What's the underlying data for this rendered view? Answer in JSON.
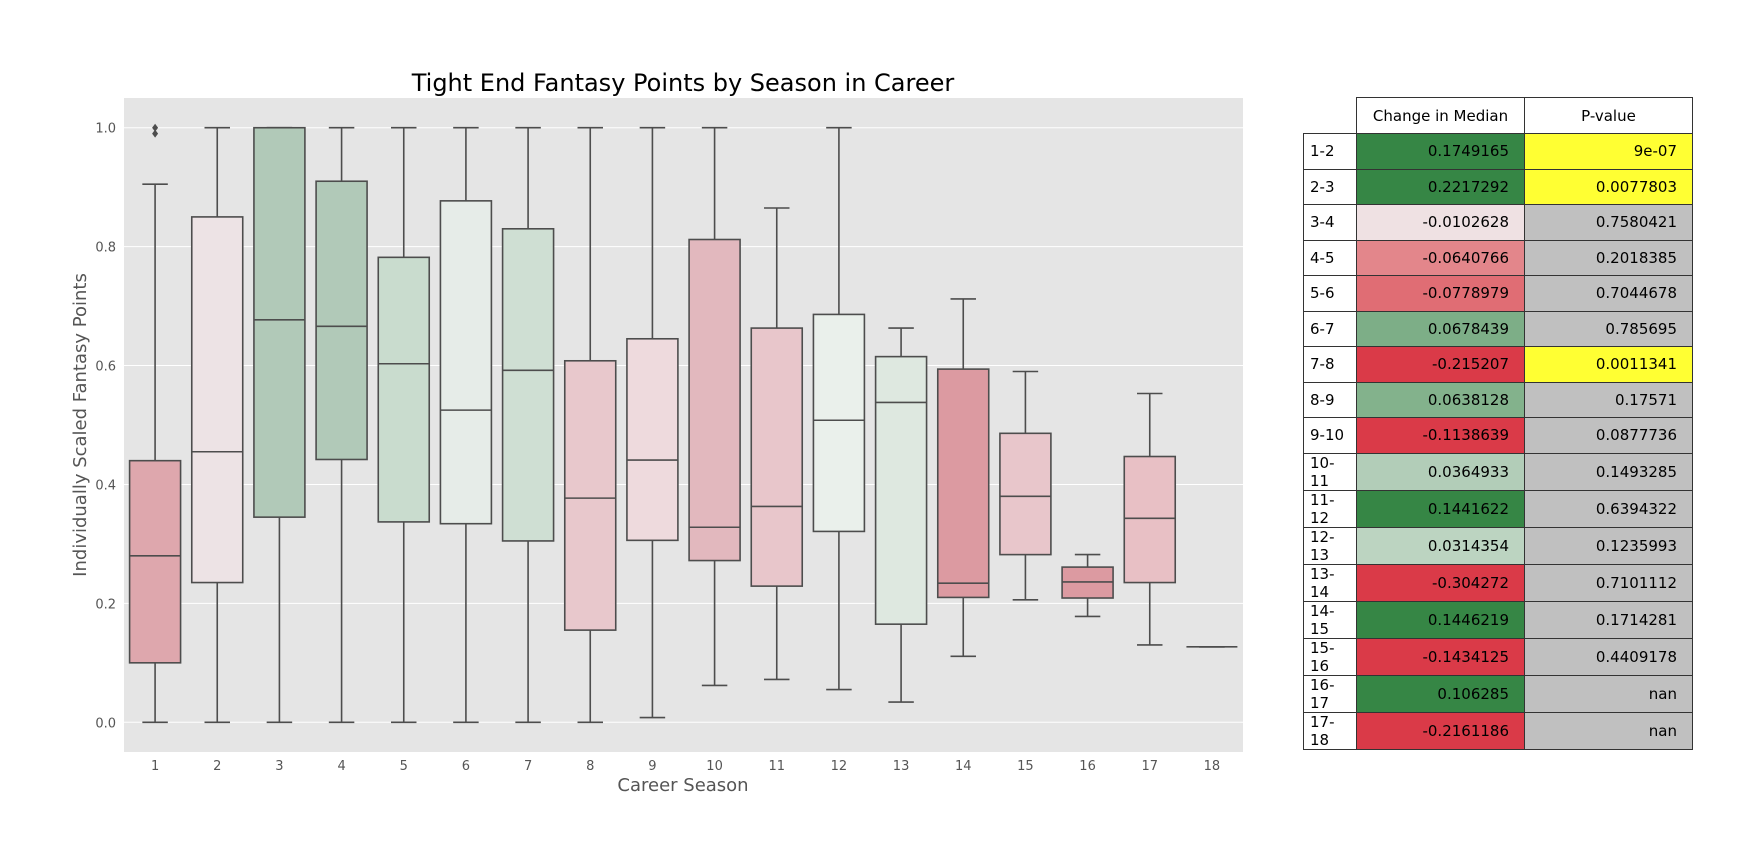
{
  "chart_data": [
    {
      "type": "box",
      "title": "Tight End Fantasy Points by Season in Career",
      "xlabel": "Career Season",
      "ylabel": "Individually Scaled Fantasy Points",
      "ylim": [
        -0.05,
        1.05
      ],
      "yticks": [
        "0.0",
        "0.2",
        "0.4",
        "0.6",
        "0.8",
        "1.0"
      ],
      "grid": true,
      "categories": [
        "1",
        "2",
        "3",
        "4",
        "5",
        "6",
        "7",
        "8",
        "9",
        "10",
        "11",
        "12",
        "13",
        "14",
        "15",
        "16",
        "17",
        "18"
      ],
      "boxes": [
        {
          "whisker_low": 0.0,
          "q1": 0.1,
          "median": 0.28,
          "q3": 0.44,
          "whisker_high": 0.905,
          "fliers": [
            0.99,
            1.0
          ],
          "color": "#dea7ad"
        },
        {
          "whisker_low": 0.0,
          "q1": 0.235,
          "median": 0.455,
          "q3": 0.85,
          "whisker_high": 1.0,
          "fliers": [],
          "color": "#ede3e5"
        },
        {
          "whisker_low": 0.0,
          "q1": 0.345,
          "median": 0.677,
          "q3": 1.0,
          "whisker_high": 1.0,
          "fliers": [],
          "color": "#b1c9b8"
        },
        {
          "whisker_low": 0.0,
          "q1": 0.442,
          "median": 0.666,
          "q3": 0.91,
          "whisker_high": 1.0,
          "fliers": [],
          "color": "#b1c9b8"
        },
        {
          "whisker_low": 0.0,
          "q1": 0.337,
          "median": 0.603,
          "q3": 0.782,
          "whisker_high": 1.0,
          "fliers": [],
          "color": "#c9dcce"
        },
        {
          "whisker_low": 0.0,
          "q1": 0.334,
          "median": 0.525,
          "q3": 0.877,
          "whisker_high": 1.0,
          "fliers": [],
          "color": "#e6ece8"
        },
        {
          "whisker_low": 0.0,
          "q1": 0.305,
          "median": 0.592,
          "q3": 0.83,
          "whisker_high": 1.0,
          "fliers": [],
          "color": "#cfdfd3"
        },
        {
          "whisker_low": 0.0,
          "q1": 0.155,
          "median": 0.377,
          "q3": 0.608,
          "whisker_high": 1.0,
          "fliers": [],
          "color": "#e8c8cc"
        },
        {
          "whisker_low": 0.008,
          "q1": 0.306,
          "median": 0.441,
          "q3": 0.645,
          "whisker_high": 1.0,
          "fliers": [],
          "color": "#eedadd"
        },
        {
          "whisker_low": 0.062,
          "q1": 0.272,
          "median": 0.328,
          "q3": 0.812,
          "whisker_high": 1.0,
          "fliers": [],
          "color": "#e2b8be"
        },
        {
          "whisker_low": 0.072,
          "q1": 0.229,
          "median": 0.363,
          "q3": 0.663,
          "whisker_high": 0.865,
          "fliers": [],
          "color": "#e8c6cb"
        },
        {
          "whisker_low": 0.055,
          "q1": 0.321,
          "median": 0.508,
          "q3": 0.686,
          "whisker_high": 1.0,
          "fliers": [],
          "color": "#eaf0eb"
        },
        {
          "whisker_low": 0.034,
          "q1": 0.165,
          "median": 0.538,
          "q3": 0.615,
          "whisker_high": 0.663,
          "fliers": [],
          "color": "#dee8e0"
        },
        {
          "whisker_low": 0.111,
          "q1": 0.21,
          "median": 0.234,
          "q3": 0.594,
          "whisker_high": 0.712,
          "fliers": [],
          "color": "#dc9aa1"
        },
        {
          "whisker_low": 0.206,
          "q1": 0.282,
          "median": 0.38,
          "q3": 0.486,
          "whisker_high": 0.59,
          "fliers": [],
          "color": "#e8c6cb"
        },
        {
          "whisker_low": 0.178,
          "q1": 0.209,
          "median": 0.236,
          "q3": 0.261,
          "whisker_high": 0.282,
          "fliers": [],
          "color": "#dc9aa1"
        },
        {
          "whisker_low": 0.13,
          "q1": 0.235,
          "median": 0.343,
          "q3": 0.447,
          "whisker_high": 0.553,
          "fliers": [],
          "color": "#e8c0c5"
        },
        {
          "whisker_low": 0.127,
          "q1": 0.127,
          "median": 0.127,
          "q3": 0.127,
          "whisker_high": 0.127,
          "fliers": [],
          "color": "#e8c0c5"
        }
      ]
    },
    {
      "type": "table",
      "columns": [
        "Change in Median",
        "P-value"
      ],
      "rows": [
        {
          "label": "1-2",
          "change": "0.1749165",
          "pvalue": "9e-07",
          "change_color": "#368645",
          "pvalue_color": "#ffff33"
        },
        {
          "label": "2-3",
          "change": "0.2217292",
          "pvalue": "0.0077803",
          "change_color": "#368645",
          "pvalue_color": "#ffff33"
        },
        {
          "label": "3-4",
          "change": "-0.0102628",
          "pvalue": "0.7580421",
          "change_color": "#efe1e3",
          "pvalue_color": "#c0c0c0"
        },
        {
          "label": "4-5",
          "change": "-0.0640766",
          "pvalue": "0.2018385",
          "change_color": "#e3868b",
          "pvalue_color": "#c0c0c0"
        },
        {
          "label": "5-6",
          "change": "-0.0778979",
          "pvalue": "0.7044678",
          "change_color": "#e06d74",
          "pvalue_color": "#c0c0c0"
        },
        {
          "label": "6-7",
          "change": "0.0678439",
          "pvalue": "0.785695",
          "change_color": "#7dae87",
          "pvalue_color": "#c0c0c0"
        },
        {
          "label": "7-8",
          "change": "-0.215207",
          "pvalue": "0.0011341",
          "change_color": "#da3a48",
          "pvalue_color": "#ffff33"
        },
        {
          "label": "8-9",
          "change": "0.0638128",
          "pvalue": "0.17571",
          "change_color": "#83b28c",
          "pvalue_color": "#c0c0c0"
        },
        {
          "label": "9-10",
          "change": "-0.1138639",
          "pvalue": "0.0877736",
          "change_color": "#da3a48",
          "pvalue_color": "#c0c0c0"
        },
        {
          "label": "10-11",
          "change": "0.0364933",
          "pvalue": "0.1493285",
          "change_color": "#b2cdb8",
          "pvalue_color": "#c0c0c0"
        },
        {
          "label": "11-12",
          "change": "0.1441622",
          "pvalue": "0.6394322",
          "change_color": "#368645",
          "pvalue_color": "#c0c0c0"
        },
        {
          "label": "12-13",
          "change": "0.0314354",
          "pvalue": "0.1235993",
          "change_color": "#bcd4c1",
          "pvalue_color": "#c0c0c0"
        },
        {
          "label": "13-14",
          "change": "-0.304272",
          "pvalue": "0.7101112",
          "change_color": "#da3a48",
          "pvalue_color": "#c0c0c0"
        },
        {
          "label": "14-15",
          "change": "0.1446219",
          "pvalue": "0.1714281",
          "change_color": "#368645",
          "pvalue_color": "#c0c0c0"
        },
        {
          "label": "15-16",
          "change": "-0.1434125",
          "pvalue": "0.4409178",
          "change_color": "#da3a48",
          "pvalue_color": "#c0c0c0"
        },
        {
          "label": "16-17",
          "change": "0.106285",
          "pvalue": "nan",
          "change_color": "#368645",
          "pvalue_color": "#c0c0c0"
        },
        {
          "label": "17-18",
          "change": "-0.2161186",
          "pvalue": "nan",
          "change_color": "#da3a48",
          "pvalue_color": "#c0c0c0"
        }
      ]
    }
  ]
}
